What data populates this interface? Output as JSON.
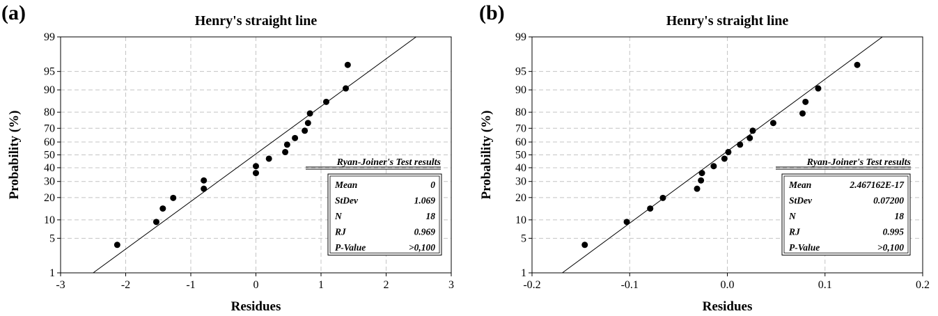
{
  "chart_data": [
    {
      "type": "scatter",
      "panel_label": "(a)",
      "title": "Henry's straight line",
      "xlabel": "Residues",
      "ylabel": "Probability (%)",
      "y_scale": "normal-probability",
      "xlim": [
        -3,
        3
      ],
      "ylim": [
        1,
        99
      ],
      "x_ticks": [
        -3,
        -2,
        -1,
        0,
        1,
        2,
        3
      ],
      "x_tick_labels": [
        "-3",
        "-2",
        "-1",
        "0",
        "1",
        "2",
        "3"
      ],
      "y_ticks": [
        1,
        5,
        10,
        20,
        30,
        40,
        50,
        60,
        70,
        80,
        90,
        95,
        99
      ],
      "y_tick_labels": [
        "1",
        "5",
        "10",
        "20",
        "30",
        "40",
        "50",
        "60",
        "70",
        "80",
        "90",
        "95",
        "99"
      ],
      "grid": true,
      "series": [
        {
          "x": [
            -2.13,
            -1.53,
            -1.43,
            -1.27,
            -0.8,
            -0.8,
            0.0,
            0.0,
            0.2,
            0.45,
            0.48,
            0.6,
            0.75,
            0.8,
            0.83,
            1.08,
            1.38,
            1.41
          ],
          "y": [
            3.8,
            9.3,
            14.5,
            19.8,
            25.2,
            30.7,
            36.0,
            41.2,
            47.0,
            52.2,
            58.0,
            63.0,
            68.3,
            73.5,
            79.3,
            85.2,
            90.5,
            96.2
          ]
        }
      ],
      "fit_line": {
        "x": [
          -2.5,
          2.6
        ],
        "y": [
          1,
          99.3
        ]
      },
      "legend": {
        "heading": "Ryan-Joiner's Test results",
        "position": "lower-right",
        "rows": [
          {
            "label": "Mean",
            "value": "0"
          },
          {
            "label": "StDev",
            "value": "1.069"
          },
          {
            "label": "N",
            "value": "18"
          },
          {
            "label": "RJ",
            "value": "0.969"
          },
          {
            "label": "P-Value",
            "value": ">0,100"
          }
        ]
      }
    },
    {
      "type": "scatter",
      "panel_label": "(b)",
      "title": "Henry's straight line",
      "xlabel": "Residues",
      "ylabel": "Probability (%)",
      "y_scale": "normal-probability",
      "xlim": [
        -0.2,
        0.2
      ],
      "ylim": [
        1,
        99
      ],
      "x_ticks": [
        -0.2,
        -0.1,
        0.0,
        0.1,
        0.2
      ],
      "x_tick_labels": [
        "-0.2",
        "-0.1",
        "0.0",
        "0.1",
        "0.2"
      ],
      "y_ticks": [
        1,
        5,
        10,
        20,
        30,
        40,
        50,
        60,
        70,
        80,
        90,
        95,
        99
      ],
      "y_tick_labels": [
        "1",
        "5",
        "10",
        "20",
        "30",
        "40",
        "50",
        "60",
        "70",
        "80",
        "90",
        "95",
        "99"
      ],
      "grid": true,
      "series": [
        {
          "x": [
            -0.146,
            -0.103,
            -0.079,
            -0.066,
            -0.031,
            -0.027,
            -0.026,
            -0.014,
            -0.003,
            0.001,
            0.013,
            0.023,
            0.026,
            0.047,
            0.077,
            0.08,
            0.093,
            0.133
          ],
          "y": [
            3.8,
            9.3,
            14.5,
            19.8,
            25.2,
            30.7,
            36.0,
            41.2,
            47.0,
            52.2,
            58.0,
            63.0,
            68.3,
            73.5,
            79.3,
            85.2,
            90.5,
            96.2
          ]
        }
      ],
      "fit_line": {
        "x": [
          -0.169,
          0.168
        ],
        "y": [
          1,
          99.3
        ]
      },
      "legend": {
        "heading": "Ryan-Joiner's Test results",
        "position": "lower-right",
        "rows": [
          {
            "label": "Mean",
            "value": "2.467162E-17"
          },
          {
            "label": "StDev",
            "value": "0.07200"
          },
          {
            "label": "N",
            "value": "18"
          },
          {
            "label": "RJ",
            "value": "0.995"
          },
          {
            "label": "P-Value",
            "value": ">0,100"
          }
        ]
      }
    }
  ]
}
